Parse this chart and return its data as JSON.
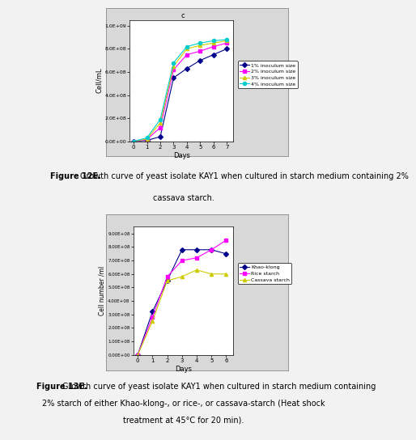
{
  "chart1": {
    "title": "c",
    "xlabel": "Days",
    "ylabel": "Cell/mL",
    "xlim": [
      -0.3,
      7.5
    ],
    "ylim": [
      0,
      1050000000.0
    ],
    "yticks": [
      0,
      200000000.0,
      400000000.0,
      600000000.0,
      800000000.0,
      1000000000.0
    ],
    "ytick_labels": [
      "0.0E+00",
      "2.0E+08",
      "4.0E+08",
      "6.0E+08",
      "8.0E+08",
      "1.0E+09"
    ],
    "xticks": [
      0,
      1,
      2,
      3,
      4,
      5,
      6,
      7
    ],
    "series": [
      {
        "label": "1% inoculum size",
        "color": "#00008B",
        "marker": "D",
        "markersize": 3,
        "x": [
          0,
          1,
          2,
          3,
          4,
          5,
          6,
          7
        ],
        "y": [
          0,
          8000000.0,
          40000000.0,
          550000000.0,
          630000000.0,
          700000000.0,
          750000000.0,
          800000000.0
        ]
      },
      {
        "label": "2% inoculum size",
        "color": "#FF00FF",
        "marker": "s",
        "markersize": 3,
        "x": [
          0,
          1,
          2,
          3,
          4,
          5,
          6,
          7
        ],
        "y": [
          0,
          15000000.0,
          120000000.0,
          620000000.0,
          750000000.0,
          780000000.0,
          820000000.0,
          850000000.0
        ]
      },
      {
        "label": "3% inoculum size",
        "color": "#CCCC00",
        "marker": "^",
        "markersize": 3,
        "x": [
          0,
          1,
          2,
          3,
          4,
          5,
          6,
          7
        ],
        "y": [
          0,
          20000000.0,
          160000000.0,
          650000000.0,
          800000000.0,
          830000000.0,
          850000000.0,
          870000000.0
        ]
      },
      {
        "label": "4% inoculum size",
        "color": "#00CCCC",
        "marker": "o",
        "markersize": 3,
        "x": [
          0,
          1,
          2,
          3,
          4,
          5,
          6,
          7
        ],
        "y": [
          0,
          30000000.0,
          190000000.0,
          680000000.0,
          820000000.0,
          850000000.0,
          870000000.0,
          880000000.0
        ]
      }
    ]
  },
  "chart2": {
    "xlabel": "Days",
    "ylabel": "Cell number /ml",
    "xlim": [
      -0.3,
      6.5
    ],
    "ylim": [
      0,
      950000000.0
    ],
    "yticks": [
      0,
      100000000.0,
      200000000.0,
      300000000.0,
      400000000.0,
      500000000.0,
      600000000.0,
      700000000.0,
      800000000.0,
      900000000.0
    ],
    "ytick_labels": [
      "0.00E+00",
      "1.00E+08",
      "2.00E+08",
      "3.00E+08",
      "4.00E+08",
      "5.00E+08",
      "6.00E+08",
      "7.00E+08",
      "8.00E+08",
      "9.00E+08"
    ],
    "xticks": [
      0,
      1,
      2,
      3,
      4,
      5,
      6
    ],
    "series": [
      {
        "label": "Khao-klong",
        "color": "#00008B",
        "marker": "D",
        "markersize": 3,
        "x": [
          0,
          1,
          2,
          3,
          4,
          5,
          6
        ],
        "y": [
          0,
          320000000.0,
          550000000.0,
          780000000.0,
          780000000.0,
          780000000.0,
          750000000.0
        ]
      },
      {
        "label": "Rice starch",
        "color": "#FF00FF",
        "marker": "s",
        "markersize": 3,
        "x": [
          0,
          1,
          2,
          3,
          4,
          5,
          6
        ],
        "y": [
          0,
          280000000.0,
          580000000.0,
          700000000.0,
          720000000.0,
          780000000.0,
          850000000.0
        ]
      },
      {
        "label": "Cassava starch",
        "color": "#CCCC00",
        "marker": "^",
        "markersize": 3,
        "x": [
          0,
          1,
          2,
          3,
          4,
          5,
          6
        ],
        "y": [
          0,
          250000000.0,
          550000000.0,
          580000000.0,
          630000000.0,
          600000000.0,
          600000000.0
        ]
      }
    ]
  },
  "caption1_bold": "Figure 12E.",
  "caption1_normal": "  Growth curve of yeast isolate KAY1 when cultured in starch medium containing 2%\ncassava starch.",
  "caption2_bold": "Figure 13E.",
  "caption2_normal": "  Growth curve of yeast isolate KAY1 when cultured in starch medium containing\n2% starch of either Khao-klong-, or rice-, or cassava-starch (Heat shock\ntreatment at 45°C for 20 min).",
  "page_color": "#f2f2f2",
  "box_color": "#d8d8d8"
}
